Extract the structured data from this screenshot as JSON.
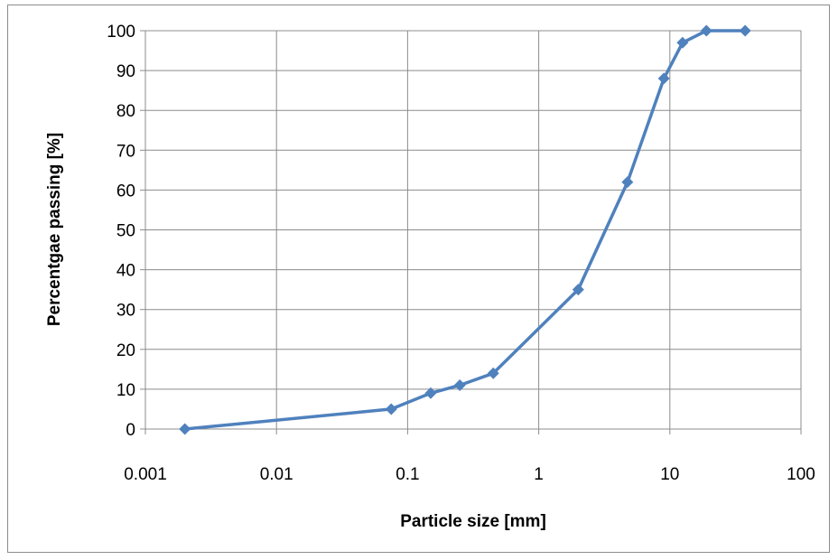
{
  "chart_data": {
    "type": "line",
    "title": "",
    "xlabel": "Particle size [mm]",
    "ylabel": "Percentgae passing [%]",
    "x_scale": "log",
    "xlim": [
      0.001,
      100
    ],
    "ylim": [
      0,
      100
    ],
    "x_ticks": [
      0.001,
      0.01,
      0.1,
      1,
      10,
      100
    ],
    "x_tick_labels": [
      "0.001",
      "0.01",
      "0.1",
      "1",
      "10",
      "100"
    ],
    "y_ticks": [
      0,
      10,
      20,
      30,
      40,
      50,
      60,
      70,
      80,
      90,
      100
    ],
    "y_tick_labels": [
      "0",
      "10",
      "20",
      "30",
      "40",
      "50",
      "60",
      "70",
      "80",
      "90",
      "100"
    ],
    "grid": true,
    "legend": "none",
    "series": [
      {
        "color": "#4f81bd",
        "marker": "diamond",
        "x": [
          0.002,
          0.075,
          0.15,
          0.25,
          0.45,
          2,
          4.75,
          9,
          12.5,
          19,
          37.5
        ],
        "y": [
          0,
          5,
          9,
          11,
          14,
          35,
          62,
          88,
          97,
          100,
          100
        ]
      }
    ]
  }
}
